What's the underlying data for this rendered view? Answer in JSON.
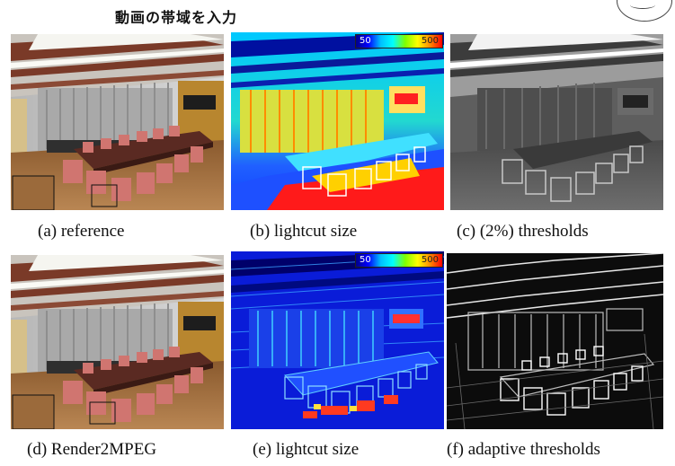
{
  "header": {
    "title": "動画の帯域を入力"
  },
  "figure": {
    "panels": [
      {
        "caption": "(a) reference"
      },
      {
        "caption": "(b) lightcut size",
        "colorbar": {
          "min": "50",
          "max": "500"
        }
      },
      {
        "caption": "(c) (2%) thresholds"
      },
      {
        "caption": "(d) Render2MPEG"
      },
      {
        "caption": "(e) lightcut size",
        "colorbar": {
          "min": "50",
          "max": "500"
        }
      },
      {
        "caption": "(f) adaptive thresholds"
      }
    ]
  }
}
